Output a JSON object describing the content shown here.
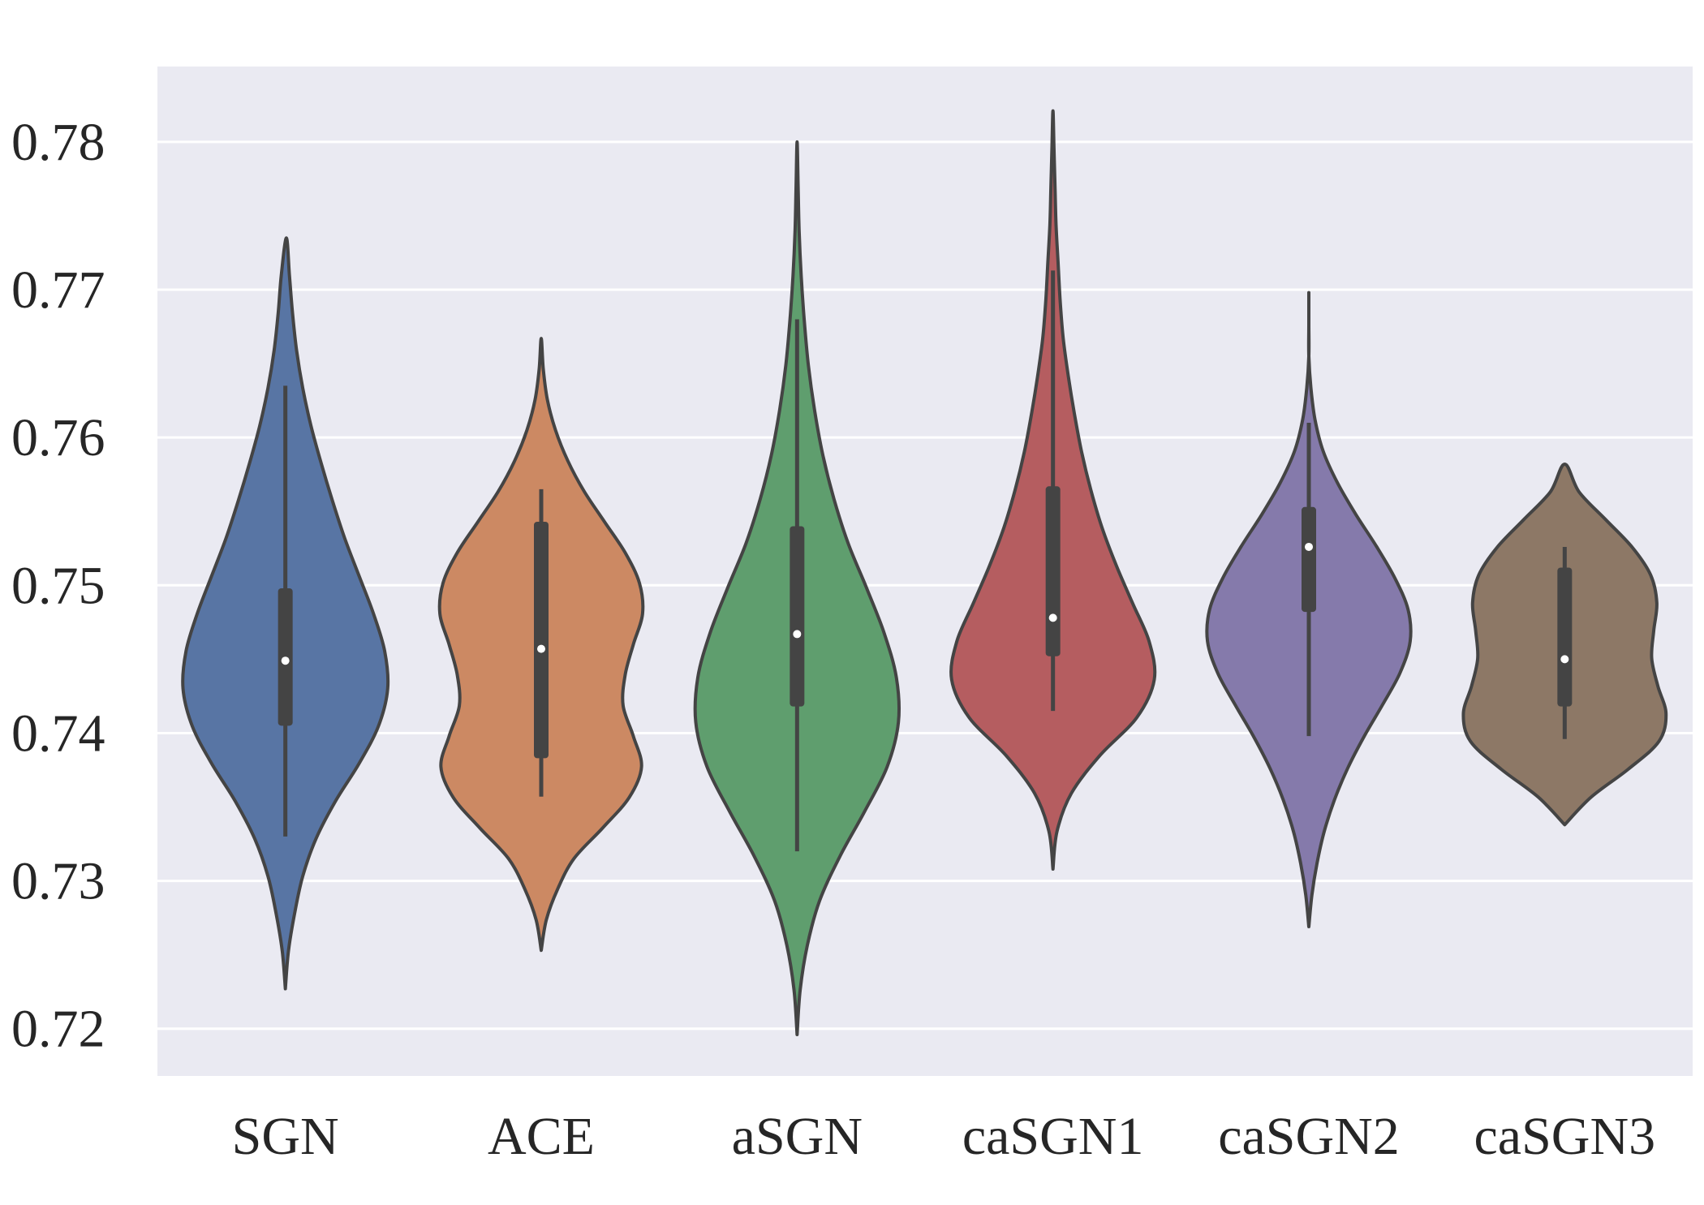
{
  "chart_data": {
    "type": "violin",
    "title": "",
    "xlabel": "",
    "ylabel": "",
    "ylim": [
      0.7168,
      0.7851
    ],
    "yticks": [
      0.72,
      0.73,
      0.74,
      0.75,
      0.76,
      0.77,
      0.78
    ],
    "ytick_labels": [
      "0.72",
      "0.73",
      "0.74",
      "0.75",
      "0.76",
      "0.77",
      "0.78"
    ],
    "grid": true,
    "background": "#eaeaf2",
    "categories": [
      "SGN",
      "ACE",
      "aSGN",
      "caSGN1",
      "caSGN2",
      "caSGN3"
    ],
    "series": [
      {
        "name": "SGN",
        "color": "#5875a4",
        "min": 0.7227,
        "max": 0.7735,
        "whisker_low": 0.733,
        "whisker_high": 0.7635,
        "q1": 0.7405,
        "median": 0.7449,
        "q3": 0.7498,
        "widths": [
          0,
          0.03,
          0.09,
          0.17,
          0.3,
          0.49,
          0.72,
          0.91,
          1.0,
          0.97,
          0.86,
          0.72,
          0.58,
          0.46,
          0.35,
          0.25,
          0.17,
          0.11,
          0.07,
          0.04,
          0.01
        ]
      },
      {
        "name": "ACE",
        "color": "#cc8963",
        "min": 0.7253,
        "max": 0.7667,
        "whisker_low": 0.7357,
        "whisker_high": 0.7565,
        "q1": 0.7383,
        "median": 0.7457,
        "q3": 0.7543,
        "widths": [
          0,
          0.05,
          0.16,
          0.32,
          0.6,
          0.86,
          0.98,
          0.9,
          0.8,
          0.82,
          0.9,
          0.99,
          0.96,
          0.82,
          0.62,
          0.42,
          0.26,
          0.14,
          0.06,
          0.02,
          0
        ]
      },
      {
        "name": "aSGN",
        "color": "#5f9e6e",
        "min": 0.7196,
        "max": 0.78,
        "whisker_low": 0.732,
        "whisker_high": 0.768,
        "q1": 0.7418,
        "median": 0.7467,
        "q3": 0.754,
        "widths": [
          0,
          0.03,
          0.1,
          0.22,
          0.42,
          0.66,
          0.88,
          0.99,
          0.97,
          0.85,
          0.68,
          0.5,
          0.36,
          0.25,
          0.17,
          0.11,
          0.07,
          0.04,
          0.02,
          0.01,
          0
        ]
      },
      {
        "name": "caSGN1",
        "color": "#b55d60",
        "min": 0.7308,
        "max": 0.7821,
        "whisker_low": 0.7415,
        "whisker_high": 0.7713,
        "q1": 0.7452,
        "median": 0.7478,
        "q3": 0.7567,
        "widths": [
          0,
          0.04,
          0.18,
          0.46,
          0.82,
          0.99,
          0.94,
          0.78,
          0.62,
          0.48,
          0.37,
          0.28,
          0.21,
          0.15,
          0.1,
          0.07,
          0.05,
          0.03,
          0.02,
          0.01,
          0
        ]
      },
      {
        "name": "caSGN2",
        "color": "#857aab",
        "min": 0.7269,
        "max": 0.7698,
        "whisker_low": 0.7398,
        "whisker_high": 0.761,
        "q1": 0.7482,
        "median": 0.7526,
        "q3": 0.7553,
        "widths": [
          0,
          0.03,
          0.08,
          0.15,
          0.25,
          0.38,
          0.54,
          0.72,
          0.89,
          0.99,
          0.97,
          0.84,
          0.66,
          0.46,
          0.28,
          0.14,
          0.06,
          0.02,
          0,
          0,
          0
        ]
      },
      {
        "name": "caSGN3",
        "color": "#8d7866",
        "min": 0.7338,
        "max": 0.7582,
        "whisker_low": 0.7396,
        "whisker_high": 0.7526,
        "q1": 0.7418,
        "median": 0.745,
        "q3": 0.7512,
        "widths": [
          0,
          0.26,
          0.62,
          0.92,
          0.99,
          0.91,
          0.85,
          0.87,
          0.9,
          0.84,
          0.66,
          0.4,
          0.14,
          0
        ]
      }
    ]
  }
}
